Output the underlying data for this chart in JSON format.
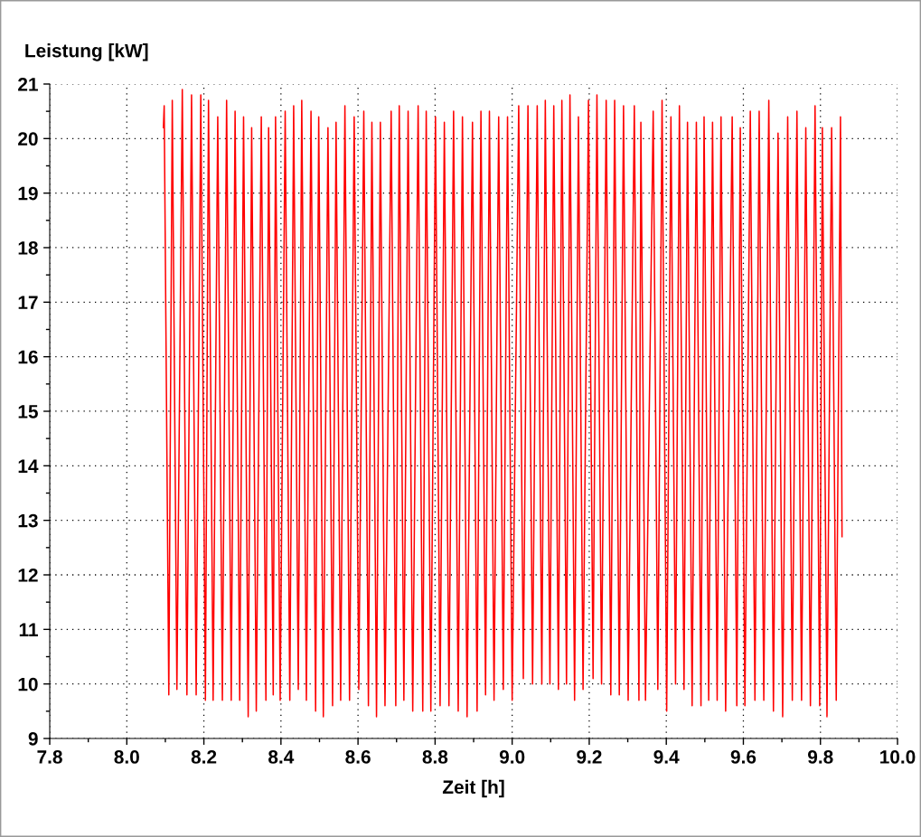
{
  "chart_data": {
    "type": "line",
    "xlabel": "Zeit [h]",
    "ylabel": "Leistung [kW]",
    "xlim": [
      7.8,
      10.0
    ],
    "ylim": [
      9,
      21
    ],
    "xticks": [
      {
        "value": 7.8,
        "label": "7.8"
      },
      {
        "value": 8.0,
        "label": "8.0"
      },
      {
        "value": 8.2,
        "label": "8.2"
      },
      {
        "value": 8.4,
        "label": "8.4"
      },
      {
        "value": 8.6,
        "label": "8.6"
      },
      {
        "value": 8.8,
        "label": "8.8"
      },
      {
        "value": 9.0,
        "label": "9.0"
      },
      {
        "value": 9.2,
        "label": "9.2"
      },
      {
        "value": 9.4,
        "label": "9.4"
      },
      {
        "value": 9.6,
        "label": "9.6"
      },
      {
        "value": 9.8,
        "label": "9.8"
      },
      {
        "value": 10.0,
        "label": "10.0"
      }
    ],
    "yticks": [
      9,
      10,
      11,
      12,
      13,
      14,
      15,
      16,
      17,
      18,
      19,
      20,
      21
    ],
    "grid": true,
    "marker": "none",
    "line_style": "solid",
    "series": [
      {
        "color": "#ff0000",
        "x": [
          8.095,
          8.097,
          8.109,
          8.118,
          8.13,
          8.144,
          8.156,
          8.168,
          8.18,
          8.192,
          8.204,
          8.212,
          8.224,
          8.236,
          8.248,
          8.259,
          8.271,
          8.281,
          8.293,
          8.303,
          8.315,
          8.324,
          8.336,
          8.349,
          8.361,
          8.368,
          8.38,
          8.386,
          8.398,
          8.411,
          8.423,
          8.433,
          8.445,
          8.454,
          8.466,
          8.478,
          8.49,
          8.498,
          8.51,
          8.522,
          8.534,
          8.543,
          8.555,
          8.566,
          8.578,
          8.59,
          8.602,
          8.615,
          8.627,
          8.636,
          8.648,
          8.658,
          8.67,
          8.686,
          8.698,
          8.707,
          8.719,
          8.73,
          8.742,
          8.756,
          8.768,
          8.777,
          8.789,
          8.801,
          8.813,
          8.824,
          8.836,
          8.848,
          8.86,
          8.871,
          8.883,
          8.897,
          8.909,
          8.919,
          8.931,
          8.941,
          8.953,
          8.965,
          8.977,
          8.988,
          9.0,
          9.017,
          9.029,
          9.041,
          9.053,
          9.065,
          9.077,
          9.086,
          9.098,
          9.108,
          9.12,
          9.129,
          9.141,
          9.15,
          9.162,
          9.172,
          9.184,
          9.198,
          9.21,
          9.22,
          9.232,
          9.244,
          9.256,
          9.266,
          9.278,
          9.289,
          9.301,
          9.317,
          9.329,
          9.334,
          9.346,
          9.366,
          9.378,
          9.389,
          9.401,
          9.412,
          9.424,
          9.434,
          9.446,
          9.455,
          9.467,
          9.478,
          9.49,
          9.498,
          9.51,
          9.52,
          9.532,
          9.542,
          9.554,
          9.571,
          9.583,
          9.592,
          9.604,
          9.618,
          9.63,
          9.641,
          9.653,
          9.666,
          9.678,
          9.69,
          9.702,
          9.715,
          9.727,
          9.739,
          9.751,
          9.762,
          9.774,
          9.786,
          9.798,
          9.805,
          9.817,
          9.829,
          9.841,
          9.852,
          9.856
        ],
        "values": [
          20.2,
          20.6,
          9.8,
          20.7,
          9.9,
          20.9,
          9.8,
          20.8,
          9.8,
          20.8,
          9.7,
          20.7,
          9.7,
          20.4,
          9.7,
          20.7,
          9.7,
          20.5,
          9.7,
          20.4,
          9.4,
          20.2,
          9.5,
          20.4,
          9.7,
          20.2,
          9.8,
          20.4,
          9.7,
          20.5,
          9.7,
          20.6,
          9.9,
          20.7,
          9.7,
          20.5,
          9.5,
          20.4,
          9.4,
          20.2,
          9.6,
          20.3,
          9.7,
          20.6,
          9.7,
          20.4,
          9.9,
          20.5,
          9.6,
          20.3,
          9.4,
          20.3,
          9.6,
          20.5,
          9.6,
          20.6,
          9.7,
          20.5,
          9.5,
          20.6,
          9.5,
          20.5,
          9.5,
          20.4,
          9.6,
          20.3,
          9.6,
          20.5,
          9.5,
          20.4,
          9.4,
          20.3,
          9.5,
          20.5,
          9.8,
          20.5,
          9.7,
          20.4,
          9.9,
          20.4,
          9.7,
          20.6,
          10.1,
          20.6,
          10.0,
          20.6,
          10.0,
          20.7,
          10.0,
          20.6,
          9.9,
          20.7,
          10.0,
          20.8,
          9.7,
          20.4,
          9.9,
          20.7,
          10.1,
          20.8,
          10.0,
          20.7,
          9.8,
          20.7,
          9.8,
          20.6,
          9.7,
          20.6,
          9.7,
          20.3,
          9.7,
          20.5,
          9.9,
          20.7,
          9.5,
          20.4,
          10.0,
          20.6,
          9.9,
          20.3,
          9.6,
          20.3,
          9.6,
          20.4,
          9.7,
          20.3,
          9.7,
          20.4,
          9.5,
          20.4,
          9.6,
          20.2,
          9.6,
          20.5,
          9.7,
          20.5,
          9.7,
          20.7,
          9.5,
          20.1,
          9.4,
          20.4,
          9.7,
          20.5,
          9.7,
          20.2,
          9.6,
          20.6,
          9.6,
          20.2,
          9.4,
          20.2,
          9.7,
          20.4,
          12.7
        ]
      }
    ]
  }
}
